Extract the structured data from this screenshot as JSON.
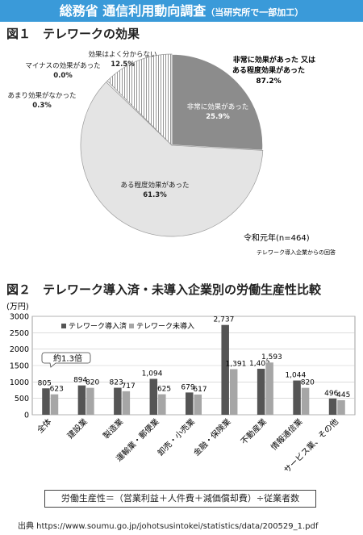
{
  "header": {
    "title": "総務省  通信利用動向調査",
    "subtitle": "（当研究所で一部加工）"
  },
  "figure1": {
    "label": "図１　テレワークの効果",
    "group_label_line1": "非常に効果があった 又は",
    "group_label_line2": "ある程度効果があった",
    "group_value": "87.2%",
    "footnote": "令和元年(n=464)",
    "note": "テレワーク導入企業からの回答"
  },
  "figure2": {
    "label": "図２　テレワーク導入済・未導入企業別の労働生産性比較",
    "callout": "約1.3倍",
    "formula": "労働生産性＝（営業利益＋人件費＋減価償却費）÷従業者数"
  },
  "source": "出典 https://www.soumu.go.jp/johotsusintokei/statistics/data/200529_1.pdf",
  "chart_data": [
    {
      "type": "pie",
      "title": "テレワークの効果",
      "slices": [
        {
          "label": "非常に効果があった",
          "value": 25.9,
          "display": "25.9%",
          "color": "#8c8c8c"
        },
        {
          "label": "ある程度効果があった",
          "value": 61.3,
          "display": "61.3%",
          "color": "#e4e4e4"
        },
        {
          "label": "あまり効果がなかった",
          "value": 0.3,
          "display": "0.3%",
          "color": "#ffffff"
        },
        {
          "label": "マイナスの効果があった",
          "value": 0.0,
          "display": "0.0%",
          "color": "#ffffff"
        },
        {
          "label": "効果はよく分からない",
          "value": 12.5,
          "display": "12.5%",
          "color": "hatched"
        }
      ]
    },
    {
      "type": "bar",
      "title": "テレワーク導入済・未導入企業別の労働生産性比較",
      "ylabel": "(万円)",
      "ylim": [
        0,
        3000
      ],
      "yticks": [
        0,
        500,
        1000,
        1500,
        2000,
        2500,
        3000
      ],
      "grid": true,
      "legend_position": "top-left",
      "categories": [
        "全体",
        "建設業",
        "製造業",
        "運輸業・郵便業",
        "卸売・小売業",
        "金融・保険業",
        "不動産業",
        "情報通信業",
        "サービス業、その他"
      ],
      "series": [
        {
          "name": "テレワーク導入済",
          "color": "#555555",
          "values": [
            805,
            894,
            823,
            1094,
            679,
            2737,
            1402,
            1044,
            496
          ],
          "labels": [
            "805",
            "894",
            "823",
            "1,094",
            "679",
            "2,737",
            "1,402",
            "1,044",
            "496"
          ]
        },
        {
          "name": "テレワーク未導入",
          "color": "#a6a6a6",
          "values": [
            623,
            820,
            717,
            625,
            617,
            1391,
            1593,
            820,
            445
          ],
          "labels": [
            "623",
            "820",
            "717",
            "625",
            "617",
            "1,391",
            "1,593",
            "820",
            "445"
          ]
        }
      ]
    }
  ]
}
